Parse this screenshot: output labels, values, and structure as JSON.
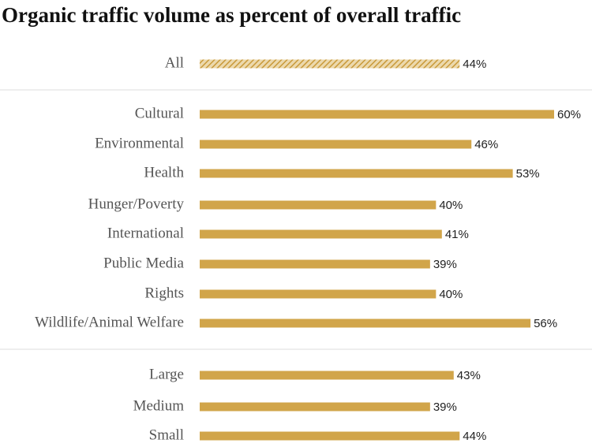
{
  "chart_data": {
    "type": "bar",
    "orientation": "horizontal",
    "title": "Organic traffic volume as percent of overall traffic",
    "categories": [
      "All",
      "Cultural",
      "Environmental",
      "Health",
      "Hunger/Poverty",
      "International",
      "Public Media",
      "Rights",
      "Wildlife/Animal Welfare",
      "Large",
      "Medium",
      "Small"
    ],
    "values": [
      44,
      60,
      46,
      53,
      40,
      41,
      39,
      40,
      56,
      43,
      39,
      44
    ],
    "value_labels": [
      "44%",
      "60%",
      "46%",
      "53%",
      "40%",
      "41%",
      "39%",
      "40%",
      "56%",
      "43%",
      "39%",
      "44%"
    ],
    "color": "#d1a54a"
  }
}
